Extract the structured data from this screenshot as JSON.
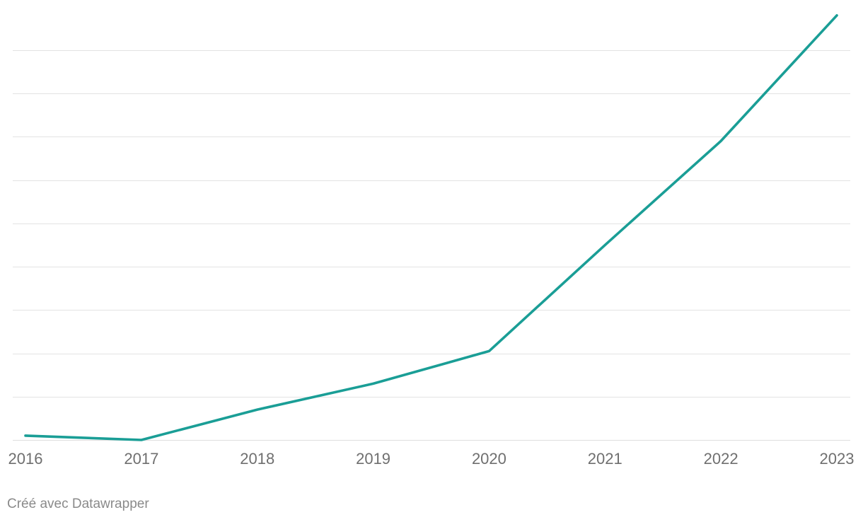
{
  "chart_data": {
    "type": "line",
    "x": [
      "2016",
      "2017",
      "2018",
      "2019",
      "2020",
      "2021",
      "2022",
      "2023"
    ],
    "series": [
      {
        "values": [
          1,
          0,
          7,
          13,
          20.5,
          45,
          69,
          98
        ]
      }
    ],
    "ylim": [
      0,
      100
    ],
    "grid": true,
    "title": "",
    "xlabel": "",
    "ylabel": ""
  },
  "colors": {
    "line": "#1a9e96",
    "grid": "#e3e3e3",
    "tick_text": "#6f6f6f"
  },
  "footer": {
    "credit": "Créé avec Datawrapper"
  }
}
